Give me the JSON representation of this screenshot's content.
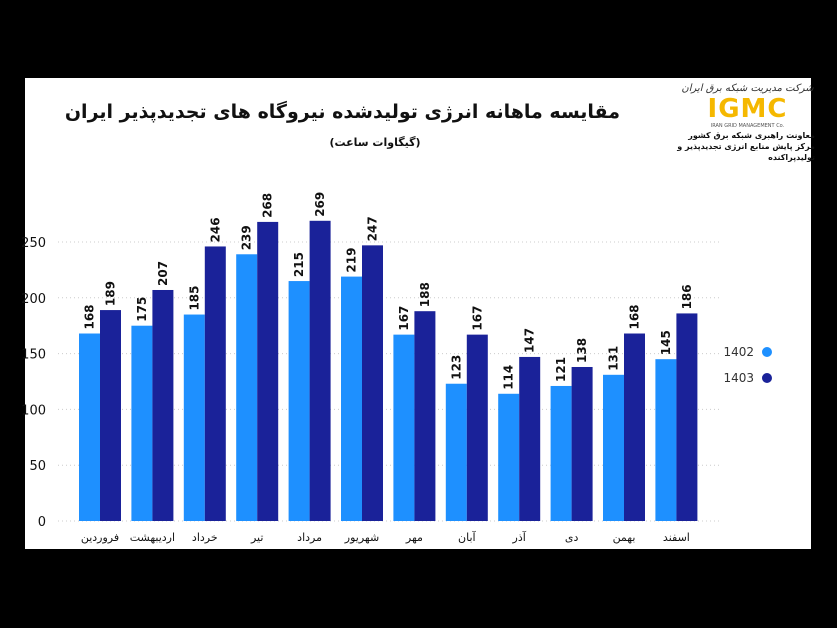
{
  "logo": {
    "script": "شرکت مدیریت شبکه برق ایران",
    "brand": "IGMC",
    "english": "IRAN GRID MANAGEMENT Co.",
    "line1": "معاونت راهبری شبکه برق کشور",
    "line2": "مرکز پایش منابع انرژی تجدیدپذیر و تولیدپراکنده"
  },
  "chart_data": {
    "type": "bar",
    "title": "مقایسه ماهانه انرژی تولیدشده نیروگاه های تجدیدپذیر ایران",
    "subtitle": "(گیگاوات ساعت)",
    "categories": [
      "فروردین",
      "اردیبهشت",
      "خرداد",
      "تیر",
      "مرداد",
      "شهریور",
      "مهر",
      "آبان",
      "آذر",
      "دی",
      "بهمن",
      "اسفند"
    ],
    "series": [
      {
        "name": "1402",
        "color": "#1e90ff",
        "values": [
          168,
          175,
          185,
          239,
          215,
          219,
          167,
          123,
          114,
          121,
          131,
          145
        ]
      },
      {
        "name": "1403",
        "color": "#1a2299",
        "values": [
          189,
          207,
          246,
          268,
          269,
          247,
          188,
          167,
          147,
          138,
          168,
          186
        ]
      }
    ],
    "yticks": [
      0,
      50,
      100,
      150,
      200,
      250
    ],
    "ylim": [
      0,
      300
    ],
    "grid": true,
    "legend": "right",
    "data_labels": true
  }
}
